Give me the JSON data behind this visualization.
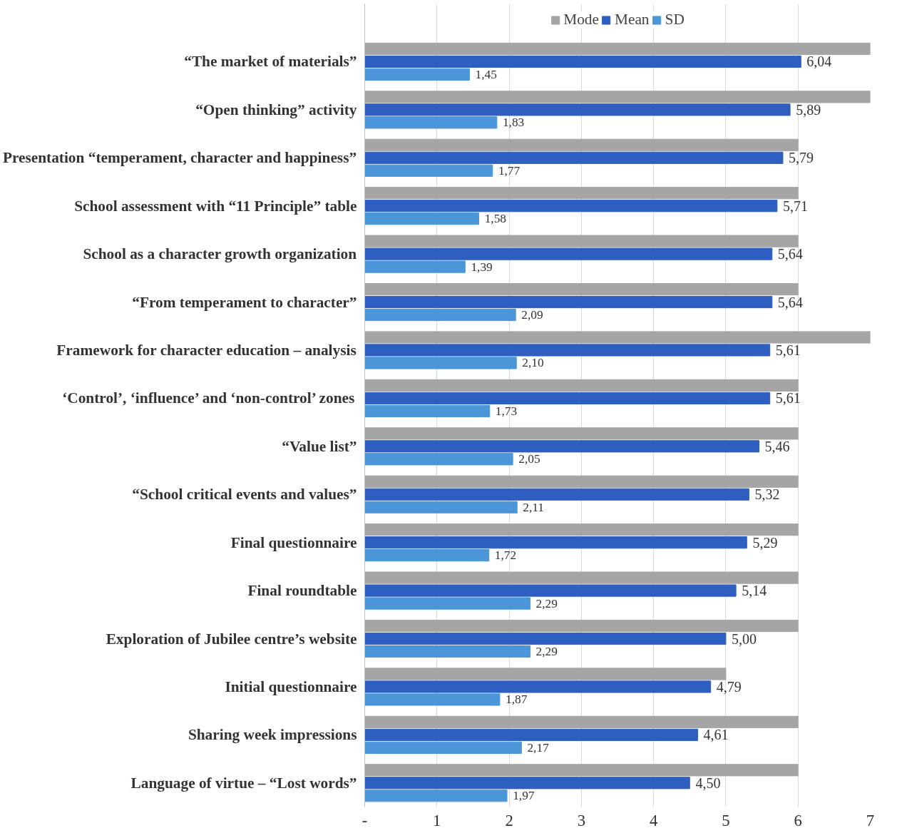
{
  "chart_data": {
    "type": "bar",
    "orientation": "horizontal",
    "legend": "top",
    "grid": "x",
    "categories": [
      "“The market of materials”",
      "“Open thinking” activity",
      "Presentation “temperament, character and happiness”",
      "School assessment with “11 Principle” table",
      "School as a character growth organization",
      "“From temperament to character”",
      "Framework for character education – analysis",
      "‘Control’, ‘influence’ and ‘non-control’ zones",
      "“Value list”",
      "“School critical events and values”",
      "Final questionnaire",
      "Final roundtable",
      "Exploration of Jubilee centre’s website",
      "Initial questionnaire",
      "Sharing week impressions",
      "Language of virtue – “Lost words”"
    ],
    "series": [
      {
        "name": "Mode",
        "color": "#a5a5a5",
        "values": [
          7,
          7,
          6,
          6,
          6,
          6,
          7,
          6,
          6,
          6,
          6,
          6,
          6,
          5,
          6,
          6
        ]
      },
      {
        "name": "Mean",
        "color": "#2e5fc0",
        "values": [
          6.04,
          5.89,
          5.79,
          5.71,
          5.64,
          5.64,
          5.61,
          5.61,
          5.46,
          5.32,
          5.29,
          5.14,
          5.0,
          4.79,
          4.61,
          4.5
        ],
        "value_labels": [
          "6,04",
          "5,89",
          "5,79",
          "5,71",
          "5,64",
          "5,64",
          "5,61",
          "5,61",
          "5,46",
          "5,32",
          "5,29",
          "5,14",
          "5,00",
          "4,79",
          "4,61",
          "4,50"
        ]
      },
      {
        "name": "SD",
        "color": "#4a96d8",
        "values": [
          1.45,
          1.83,
          1.77,
          1.58,
          1.39,
          2.09,
          2.1,
          1.73,
          2.05,
          2.11,
          1.72,
          2.29,
          2.29,
          1.87,
          2.17,
          1.97
        ],
        "value_labels": [
          "1,45",
          "1,83",
          "1,77",
          "1,58",
          "1,39",
          "2,09",
          "2,10",
          "1,73",
          "2,05",
          "2,11",
          "1,72",
          "2,29",
          "2,29",
          "1,87",
          "2,17",
          "1,97"
        ]
      }
    ],
    "xlim": [
      0,
      7
    ],
    "xticks": [
      {
        "value": 0,
        "label": "-"
      },
      1,
      2,
      3,
      4,
      5,
      6,
      7
    ]
  }
}
